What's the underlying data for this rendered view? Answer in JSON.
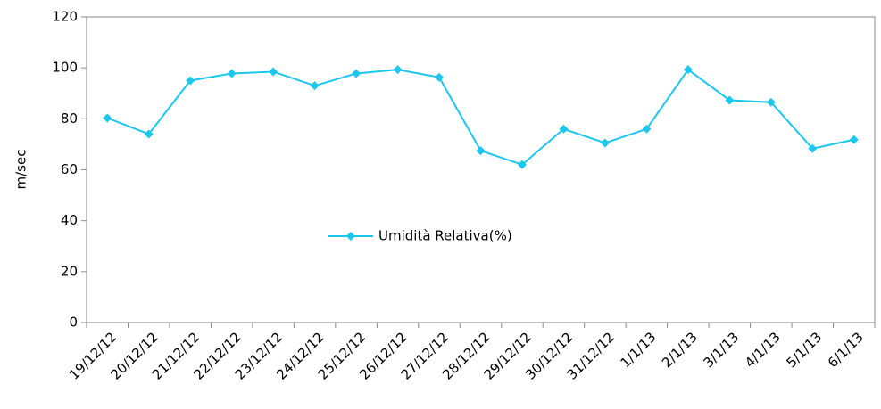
{
  "chart_data": {
    "type": "line",
    "y_label": "m/sec",
    "categories": [
      "19/12/12",
      "20/12/12",
      "21/12/12",
      "22/12/12",
      "23/12/12",
      "24/12/12",
      "25/12/12",
      "26/12/12",
      "27/12/12",
      "28/12/12",
      "29/12/12",
      "30/12/12",
      "31/12/12",
      "1/1/13",
      "2/1/13",
      "3/1/13",
      "4/1/13",
      "5/1/13",
      "6/1/13"
    ],
    "series": [
      {
        "name": "Umidità Relativa(%)",
        "color": "#1cc6ee",
        "values": [
          80.3,
          74,
          95,
          97.8,
          98.5,
          93,
          97.8,
          99.3,
          96.3,
          67.5,
          62,
          76,
          70.5,
          76,
          99.3,
          87.3,
          86.5,
          68.3,
          71.8
        ]
      }
    ],
    "ylim": [
      0,
      120
    ],
    "yticks": [
      0,
      20,
      40,
      60,
      80,
      100,
      120
    ],
    "legend": "center",
    "grid": false
  }
}
